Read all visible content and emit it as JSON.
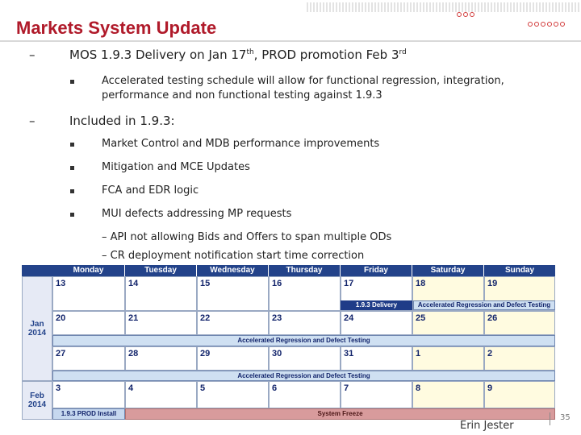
{
  "slide": {
    "title": "Markets System Update",
    "author": "Erin Jester",
    "page_number": "35"
  },
  "bullets": {
    "item1": {
      "dash": "–",
      "text_a": "MOS 1.9.3 Delivery on Jan 17",
      "sup_a": "th",
      "text_b": ",  PROD promotion Feb 3",
      "sup_b": "rd",
      "sub": [
        "Accelerated testing schedule  will allow for functional regression, integration, performance and non functional testing against 1.9.3"
      ]
    },
    "item2": {
      "dash": "–",
      "text": "Included in 1.9.3:",
      "sub": [
        "Market Control and MDB performance improvements",
        "Mitigation and MCE Updates",
        "FCA and EDR logic",
        "MUI defects addressing MP requests"
      ],
      "subsub": [
        "– API not allowing Bids and Offers to span multiple ODs",
        "– CR deployment notification start time correction"
      ]
    }
  },
  "calendar": {
    "days": [
      "Monday",
      "Tuesday",
      "Wednesday",
      "Thursday",
      "Friday",
      "Saturday",
      "Sunday"
    ],
    "months": [
      "Jan\n2014",
      "Feb\n2014"
    ],
    "weeks": [
      [
        "13",
        "14",
        "15",
        "16",
        "17",
        "18",
        "19"
      ],
      [
        "20",
        "21",
        "22",
        "23",
        "24",
        "25",
        "26"
      ],
      [
        "27",
        "28",
        "29",
        "30",
        "31",
        "1",
        "2"
      ],
      [
        "3",
        "4",
        "5",
        "6",
        "7",
        "8",
        "9"
      ]
    ],
    "bars": {
      "delivery": "1.9.3 Delivery",
      "accel_weekend": "Accelerated Regression and Defect Testing",
      "accel_week2": "Accelerated Regression and Defect Testing",
      "accel_week3": "Accelerated Regression and Defect Testing",
      "prod_install": "1.9.3 PROD Install",
      "freeze": "System Freeze"
    },
    "colors": {
      "header": "#23438a",
      "weekend": "#fffbe0",
      "freeze": "#d89b9c",
      "accel": "#cfe0f2"
    }
  }
}
